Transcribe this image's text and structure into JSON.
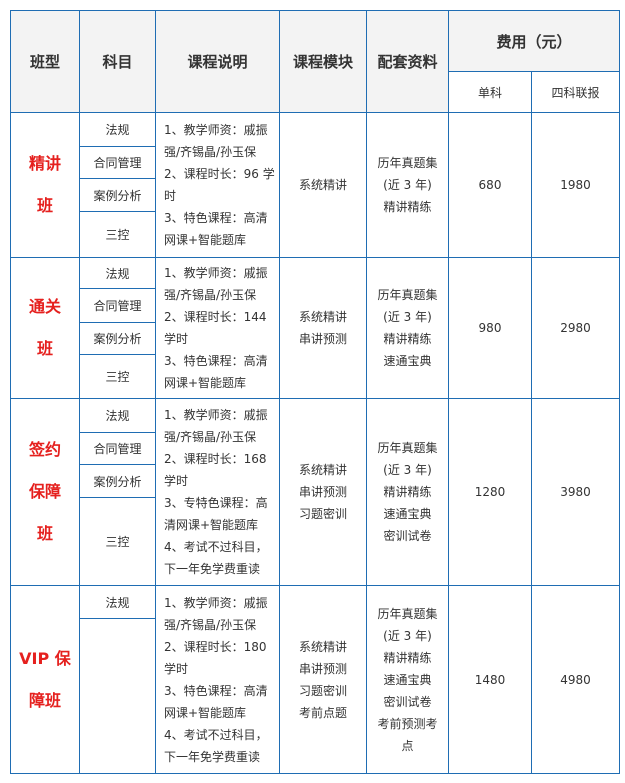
{
  "header": {
    "class_type": "班型",
    "subject": "科目",
    "description": "课程说明",
    "module": "课程模块",
    "materials": "配套资料",
    "fee": "费用（元）",
    "single": "单科",
    "combo": "四科联报"
  },
  "colors": {
    "border": "#1f6db3",
    "class_name": "#e5201e",
    "header_bg": "#f3f3f3"
  },
  "rows": [
    {
      "name_lines": [
        "精讲",
        "班"
      ],
      "subjects": [
        "法规",
        "合同管理",
        "案例分析",
        "三控"
      ],
      "desc": [
        "1、教学师资：戚振",
        "强/齐锡晶/孙玉保",
        "2、课程时长：96 学",
        "时",
        "3、特色课程：高清",
        "网课+智能题库"
      ],
      "modules": [
        "系统精讲"
      ],
      "materials": [
        "历年真题集",
        "(近 3 年)",
        "精讲精练"
      ],
      "single": "680",
      "combo": "1980"
    },
    {
      "name_lines": [
        "通关",
        "班"
      ],
      "subjects": [
        "法规",
        "合同管理",
        "案例分析",
        "三控"
      ],
      "desc": [
        "1、教学师资：戚振",
        "强/齐锡晶/孙玉保",
        "2、课程时长：144",
        "学时",
        " 3、特色课程：高清",
        "网课+智能题库"
      ],
      "modules": [
        "系统精讲",
        "串讲预测"
      ],
      "materials": [
        "历年真题集",
        "(近 3 年)",
        "精讲精练",
        "速通宝典"
      ],
      "single": "980",
      "combo": "2980"
    },
    {
      "name_lines": [
        "签约",
        "保障",
        "班"
      ],
      "subjects": [
        "法规",
        "合同管理",
        "案例分析",
        "三控"
      ],
      "desc": [
        "1、教学师资：戚振",
        "强/齐锡晶/孙玉保",
        "2、课程时长：168",
        "学时",
        " 3、专特色课程：高",
        "清网课+智能题库",
        " 4、考试不过科目，",
        "下一年免学费重读"
      ],
      "modules": [
        "系统精讲",
        "串讲预测",
        "习题密训"
      ],
      "materials": [
        "历年真题集",
        "(近 3 年)",
        "精讲精练",
        "速通宝典",
        "密训试卷"
      ],
      "single": "1280",
      "combo": "3980"
    },
    {
      "name_lines": [
        "VIP 保",
        "障班"
      ],
      "subjects": [
        "法规",
        ""
      ],
      "desc": [
        "1、教学师资：戚振",
        "强/齐锡晶/孙玉保",
        "2、课程时长：180",
        "学时",
        " 3、特色课程：高清",
        "网课+智能题库",
        " 4、考试不过科目，",
        "下一年免学费重读"
      ],
      "modules": [
        "系统精讲",
        "串讲预测",
        "习题密训",
        "考前点题"
      ],
      "materials": [
        "历年真题集",
        "(近 3 年)",
        "精讲精练",
        "速通宝典",
        "密训试卷",
        "考前预测考",
        "点"
      ],
      "single": "1480",
      "combo": "4980"
    }
  ]
}
